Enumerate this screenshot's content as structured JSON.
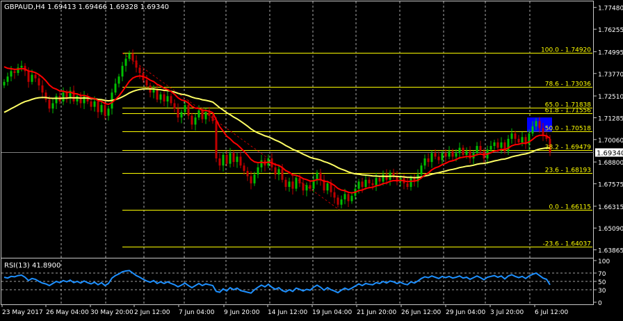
{
  "header": {
    "symbol_line": "GBPAUD,H4  1.69413 1.69466 1.69328 1.69340"
  },
  "rsi_header": {
    "label": "RSI(13) 41.8900"
  },
  "price_axis": [
    "1.77480",
    "1.76255",
    "1.74995",
    "1.73770",
    "1.72510",
    "1.71285",
    "1.70060",
    "1.68800",
    "1.67575",
    "1.66315",
    "1.65090",
    "1.63865"
  ],
  "price_axis_values": [
    1.7748,
    1.76255,
    1.74995,
    1.7377,
    1.7251,
    1.71285,
    1.7006,
    1.688,
    1.67575,
    1.66315,
    1.6509,
    1.63865
  ],
  "current_price": {
    "label": "1.69340",
    "value": 1.6934
  },
  "rsi_axis": [
    "100",
    "70",
    "50",
    "30",
    "0"
  ],
  "rsi_axis_values": [
    100,
    70,
    50,
    30,
    0
  ],
  "time_axis": [
    "23 May 2017",
    "26 May 04:00",
    "30 May 20:00",
    "2 Jun 12:00",
    "7 Jun 04:00",
    "9 Jun 20:00",
    "14 Jun 12:00",
    "19 Jun 04:00",
    "21 Jun 20:00",
    "26 Jun 12:00",
    "29 Jun 04:00",
    "3 Jul 20:00",
    "6 Jul 12:00"
  ],
  "fib_levels": [
    {
      "label": "100.0 - 1.74920",
      "value": 1.7492
    },
    {
      "label": "78.6 - 1.73036",
      "value": 1.73036
    },
    {
      "label": "65.0 - 1.71838",
      "value": 1.71838
    },
    {
      "label": "61.8 - 1.71556",
      "value": 1.71556
    },
    {
      "label": "50.0 - 1.70518",
      "value": 1.70518
    },
    {
      "label": "38.2 - 1.69479",
      "value": 1.69479
    },
    {
      "label": "23.6 - 1.68193",
      "value": 1.68193
    },
    {
      "label": "0.0 - 1.66115",
      "value": 1.66115
    },
    {
      "label": "-23.6 - 1.64037",
      "value": 1.64037
    }
  ],
  "colors": {
    "background": "#000000",
    "bull": "#00c000",
    "bear": "#c00000",
    "fib": "#ffff00",
    "ma_fast": "#ff0000",
    "ma_slow": "#ffff66",
    "rsi": "#1e90ff",
    "grid": "#c8c8c8",
    "zone": "#0000ff",
    "text": "#ffffff"
  },
  "chart_data": {
    "type": "candlestick",
    "instrument": "GBPAUD",
    "timeframe": "H4",
    "ylim": [
      1.6342,
      1.7782
    ],
    "rsi_ylim": [
      0,
      100
    ],
    "close": [
      1.733,
      1.736,
      1.739,
      1.738,
      1.741,
      1.742,
      1.739,
      1.733,
      1.737,
      1.735,
      1.731,
      1.727,
      1.723,
      1.718,
      1.721,
      1.725,
      1.722,
      1.727,
      1.724,
      1.728,
      1.722,
      1.725,
      1.721,
      1.725,
      1.722,
      1.719,
      1.722,
      1.716,
      1.72,
      1.714,
      1.718,
      1.727,
      1.732,
      1.736,
      1.742,
      1.746,
      1.749,
      1.745,
      1.741,
      1.738,
      1.734,
      1.731,
      1.727,
      1.729,
      1.723,
      1.726,
      1.722,
      1.725,
      1.721,
      1.718,
      1.713,
      1.716,
      1.72,
      1.714,
      1.709,
      1.713,
      1.717,
      1.712,
      1.716,
      1.714,
      1.711,
      1.69,
      1.686,
      1.692,
      1.687,
      1.693,
      1.688,
      1.691,
      1.686,
      1.683,
      1.68,
      1.676,
      1.681,
      1.685,
      1.689,
      1.686,
      1.69,
      1.685,
      1.681,
      1.684,
      1.678,
      1.674,
      1.677,
      1.673,
      1.679,
      1.676,
      1.672,
      1.675,
      1.673,
      1.678,
      1.682,
      1.678,
      1.672,
      1.676,
      1.671,
      1.668,
      1.664,
      1.667,
      1.67,
      1.666,
      1.669,
      1.673,
      1.677,
      1.674,
      1.678,
      1.676,
      1.675,
      1.679,
      1.677,
      1.681,
      1.678,
      1.682,
      1.68,
      1.677,
      1.679,
      1.676,
      1.674,
      1.679,
      1.677,
      1.681,
      1.686,
      1.69,
      1.688,
      1.693,
      1.691,
      1.689,
      1.693,
      1.691,
      1.694,
      1.691,
      1.693,
      1.696,
      1.692,
      1.694,
      1.69,
      1.693,
      1.697,
      1.694,
      1.69,
      1.695,
      1.697,
      1.699,
      1.696,
      1.699,
      1.694,
      1.701,
      1.704,
      1.701,
      1.699,
      1.702,
      1.698,
      1.704,
      1.708,
      1.711,
      1.707,
      1.703,
      1.701,
      1.6934
    ],
    "rsi": [
      60,
      58,
      62,
      61,
      64,
      65,
      60,
      52,
      57,
      55,
      50,
      46,
      44,
      40,
      45,
      50,
      47,
      52,
      49,
      53,
      47,
      50,
      46,
      51,
      47,
      44,
      48,
      42,
      47,
      40,
      45,
      58,
      64,
      68,
      73,
      75,
      76,
      70,
      64,
      60,
      55,
      51,
      48,
      52,
      45,
      49,
      45,
      49,
      45,
      42,
      37,
      41,
      46,
      40,
      35,
      40,
      45,
      40,
      44,
      42,
      40,
      26,
      24,
      32,
      27,
      35,
      30,
      34,
      28,
      26,
      24,
      22,
      30,
      36,
      41,
      37,
      43,
      36,
      31,
      35,
      28,
      25,
      30,
      26,
      34,
      31,
      27,
      31,
      29,
      36,
      41,
      36,
      29,
      35,
      30,
      27,
      23,
      29,
      34,
      30,
      34,
      39,
      44,
      40,
      45,
      43,
      42,
      47,
      45,
      50,
      46,
      51,
      49,
      45,
      48,
      44,
      42,
      49,
      46,
      51,
      57,
      61,
      59,
      63,
      60,
      57,
      62,
      59,
      62,
      58,
      60,
      63,
      58,
      60,
      55,
      59,
      63,
      59,
      54,
      60,
      62,
      64,
      60,
      63,
      56,
      63,
      66,
      62,
      59,
      62,
      57,
      63,
      67,
      70,
      64,
      58,
      55,
      41.89
    ]
  }
}
